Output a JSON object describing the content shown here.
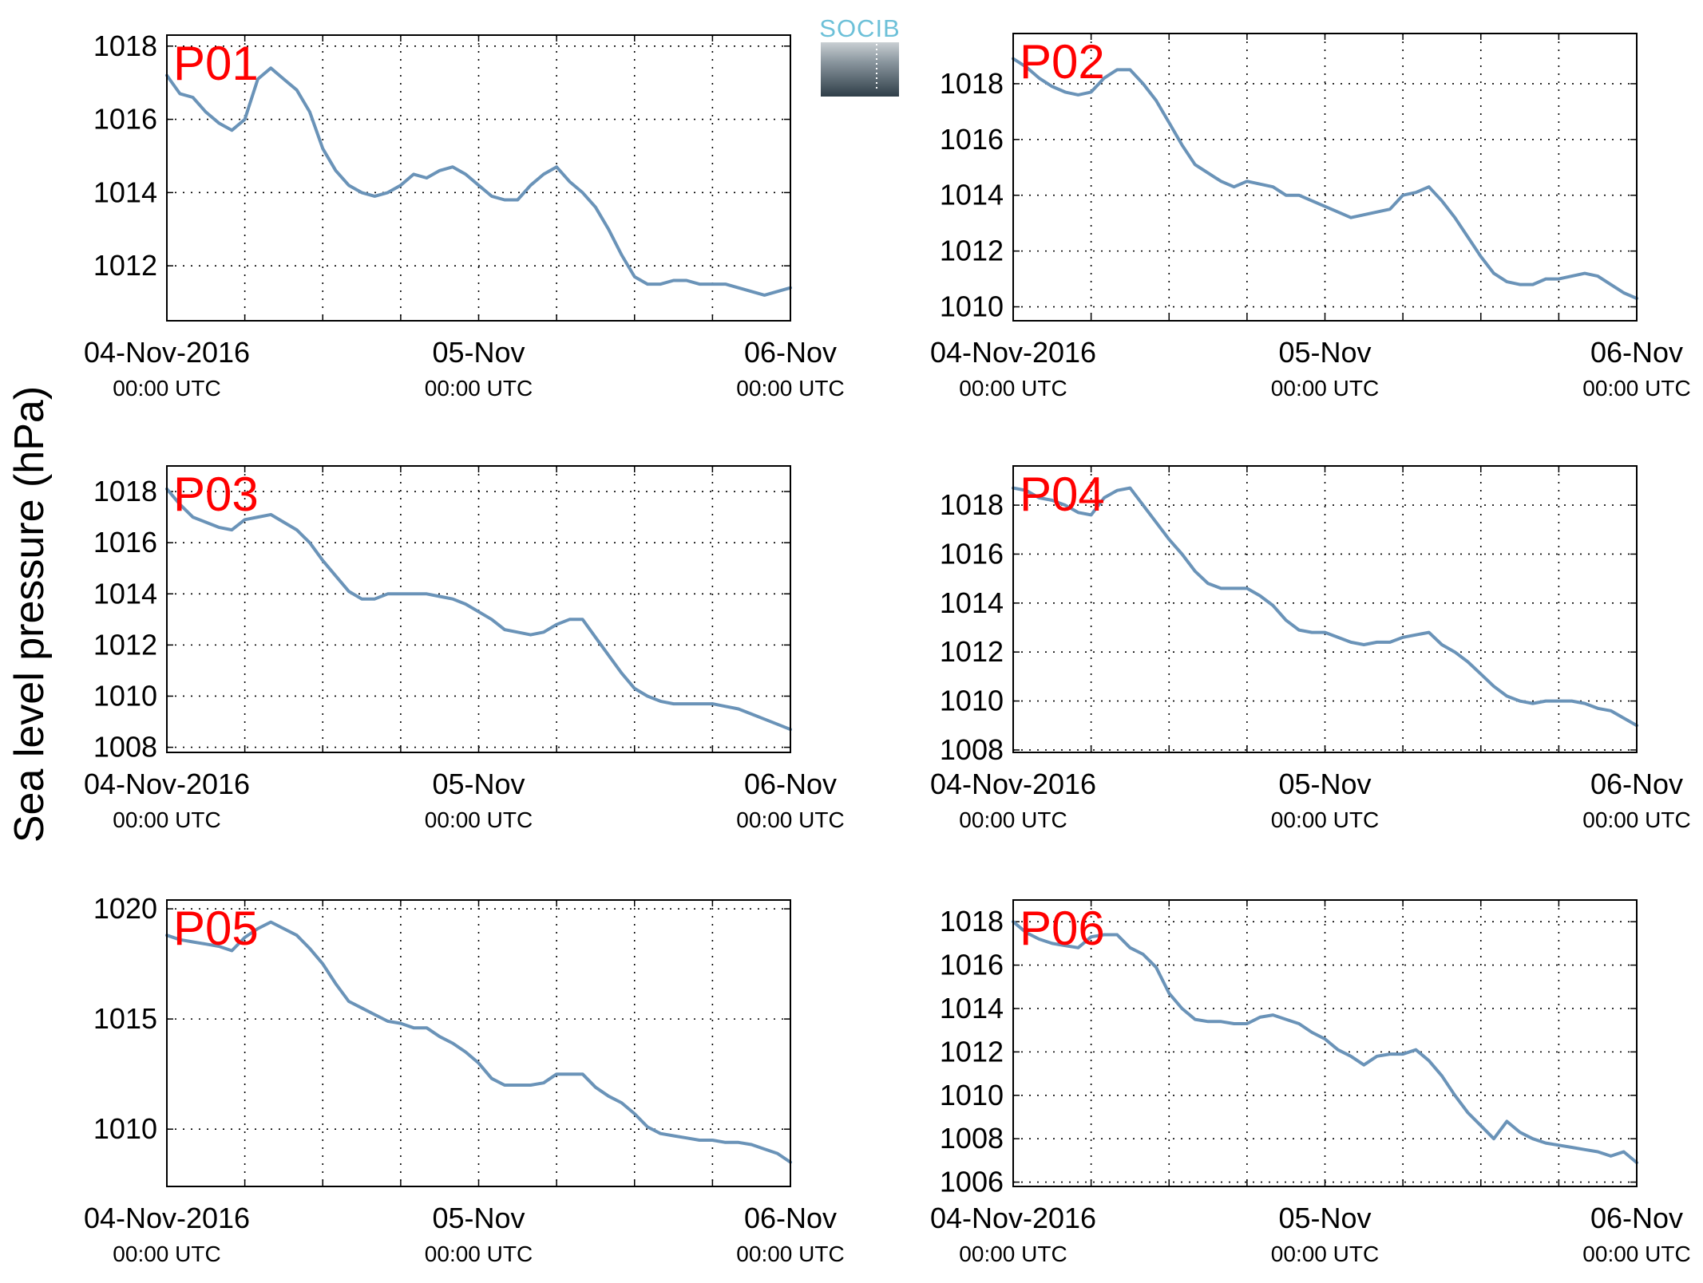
{
  "figure": {
    "ylabel": "Sea level pressure (hPa)",
    "logo_text": "SOCIB",
    "line_color": "#6a93b8",
    "label_color": "#ff0000"
  },
  "chart_data": [
    {
      "type": "line",
      "title": "P01",
      "x_unit": "hours since 04-Nov-2016 00:00 UTC",
      "xlim": [
        0,
        48
      ],
      "x_ticks": [
        0,
        24,
        48
      ],
      "x_tick_labels": [
        "04-Nov-2016",
        "05-Nov",
        "06-Nov"
      ],
      "x_tick_sublabels": [
        "00:00 UTC",
        "00:00 UTC",
        "00:00 UTC"
      ],
      "ylim": [
        1010.5,
        1018.3
      ],
      "y_ticks": [
        1012,
        1014,
        1016,
        1018
      ],
      "x": [
        0,
        1,
        2,
        3,
        4,
        5,
        6,
        7,
        8,
        9,
        10,
        11,
        12,
        13,
        14,
        15,
        16,
        17,
        18,
        19,
        20,
        21,
        22,
        23,
        24,
        25,
        26,
        27,
        28,
        29,
        30,
        31,
        32,
        33,
        34,
        35,
        36,
        37,
        38,
        39,
        40,
        41,
        42,
        43,
        44,
        45,
        46,
        47,
        48
      ],
      "y": [
        1017.2,
        1016.7,
        1016.6,
        1016.2,
        1015.9,
        1015.7,
        1016.0,
        1017.1,
        1017.4,
        1017.1,
        1016.8,
        1016.2,
        1015.2,
        1014.6,
        1014.2,
        1014.0,
        1013.9,
        1014.0,
        1014.2,
        1014.5,
        1014.4,
        1014.6,
        1014.7,
        1014.5,
        1014.2,
        1013.9,
        1013.8,
        1013.8,
        1014.2,
        1014.5,
        1014.7,
        1014.3,
        1014.0,
        1013.6,
        1013.0,
        1012.3,
        1011.7,
        1011.5,
        1011.5,
        1011.6,
        1011.6,
        1011.5,
        1011.5,
        1011.5,
        1011.4,
        1011.3,
        1011.2,
        1011.3,
        1011.4
      ]
    },
    {
      "type": "line",
      "title": "P02",
      "x_unit": "hours since 04-Nov-2016 00:00 UTC",
      "xlim": [
        0,
        48
      ],
      "x_ticks": [
        0,
        24,
        48
      ],
      "x_tick_labels": [
        "04-Nov-2016",
        "05-Nov",
        "06-Nov"
      ],
      "x_tick_sublabels": [
        "00:00 UTC",
        "00:00 UTC",
        "00:00 UTC"
      ],
      "ylim": [
        1009.5,
        1019.8
      ],
      "y_ticks": [
        1010,
        1012,
        1014,
        1016,
        1018
      ],
      "x": [
        0,
        1,
        2,
        3,
        4,
        5,
        6,
        7,
        8,
        9,
        10,
        11,
        12,
        13,
        14,
        15,
        16,
        17,
        18,
        19,
        20,
        21,
        22,
        23,
        24,
        25,
        26,
        27,
        28,
        29,
        30,
        31,
        32,
        33,
        34,
        35,
        36,
        37,
        38,
        39,
        40,
        41,
        42,
        43,
        44,
        45,
        46,
        47,
        48
      ],
      "y": [
        1018.9,
        1018.6,
        1018.2,
        1017.9,
        1017.7,
        1017.6,
        1017.7,
        1018.2,
        1018.5,
        1018.5,
        1018.0,
        1017.4,
        1016.6,
        1015.8,
        1015.1,
        1014.8,
        1014.5,
        1014.3,
        1014.5,
        1014.4,
        1014.3,
        1014.0,
        1014.0,
        1013.8,
        1013.6,
        1013.4,
        1013.2,
        1013.3,
        1013.4,
        1013.5,
        1014.0,
        1014.1,
        1014.3,
        1013.8,
        1013.2,
        1012.5,
        1011.8,
        1011.2,
        1010.9,
        1010.8,
        1010.8,
        1011.0,
        1011.0,
        1011.1,
        1011.2,
        1011.1,
        1010.8,
        1010.5,
        1010.3
      ]
    },
    {
      "type": "line",
      "title": "P03",
      "x_unit": "hours since 04-Nov-2016 00:00 UTC",
      "xlim": [
        0,
        48
      ],
      "x_ticks": [
        0,
        24,
        48
      ],
      "x_tick_labels": [
        "04-Nov-2016",
        "05-Nov",
        "06-Nov"
      ],
      "x_tick_sublabels": [
        "00:00 UTC",
        "00:00 UTC",
        "00:00 UTC"
      ],
      "ylim": [
        1007.8,
        1019.0
      ],
      "y_ticks": [
        1008,
        1010,
        1012,
        1014,
        1016,
        1018
      ],
      "x": [
        0,
        1,
        2,
        3,
        4,
        5,
        6,
        7,
        8,
        9,
        10,
        11,
        12,
        13,
        14,
        15,
        16,
        17,
        18,
        19,
        20,
        21,
        22,
        23,
        24,
        25,
        26,
        27,
        28,
        29,
        30,
        31,
        32,
        33,
        34,
        35,
        36,
        37,
        38,
        39,
        40,
        41,
        42,
        43,
        44,
        45,
        46,
        47,
        48
      ],
      "y": [
        1018.1,
        1017.5,
        1017.0,
        1016.8,
        1016.6,
        1016.5,
        1016.9,
        1017.0,
        1017.1,
        1016.8,
        1016.5,
        1016.0,
        1015.3,
        1014.7,
        1014.1,
        1013.8,
        1013.8,
        1014.0,
        1014.0,
        1014.0,
        1014.0,
        1013.9,
        1013.8,
        1013.6,
        1013.3,
        1013.0,
        1012.6,
        1012.5,
        1012.4,
        1012.5,
        1012.8,
        1013.0,
        1013.0,
        1012.3,
        1011.6,
        1010.9,
        1010.3,
        1010.0,
        1009.8,
        1009.7,
        1009.7,
        1009.7,
        1009.7,
        1009.6,
        1009.5,
        1009.3,
        1009.1,
        1008.9,
        1008.7
      ]
    },
    {
      "type": "line",
      "title": "P04",
      "x_unit": "hours since 04-Nov-2016 00:00 UTC",
      "xlim": [
        0,
        48
      ],
      "x_ticks": [
        0,
        24,
        48
      ],
      "x_tick_labels": [
        "04-Nov-2016",
        "05-Nov",
        "06-Nov"
      ],
      "x_tick_sublabels": [
        "00:00 UTC",
        "00:00 UTC",
        "00:00 UTC"
      ],
      "ylim": [
        1007.9,
        1019.6
      ],
      "y_ticks": [
        1008,
        1010,
        1012,
        1014,
        1016,
        1018
      ],
      "x": [
        0,
        1,
        2,
        3,
        4,
        5,
        6,
        7,
        8,
        9,
        10,
        11,
        12,
        13,
        14,
        15,
        16,
        17,
        18,
        19,
        20,
        21,
        22,
        23,
        24,
        25,
        26,
        27,
        28,
        29,
        30,
        31,
        32,
        33,
        34,
        35,
        36,
        37,
        38,
        39,
        40,
        41,
        42,
        43,
        44,
        45,
        46,
        47,
        48
      ],
      "y": [
        1018.7,
        1018.6,
        1018.3,
        1018.2,
        1018.0,
        1017.7,
        1017.6,
        1018.3,
        1018.6,
        1018.7,
        1018.0,
        1017.3,
        1016.6,
        1016.0,
        1015.3,
        1014.8,
        1014.6,
        1014.6,
        1014.6,
        1014.3,
        1013.9,
        1013.3,
        1012.9,
        1012.8,
        1012.8,
        1012.6,
        1012.4,
        1012.3,
        1012.4,
        1012.4,
        1012.6,
        1012.7,
        1012.8,
        1012.3,
        1012.0,
        1011.6,
        1011.1,
        1010.6,
        1010.2,
        1010.0,
        1009.9,
        1010.0,
        1010.0,
        1010.0,
        1009.9,
        1009.7,
        1009.6,
        1009.3,
        1009.0
      ]
    },
    {
      "type": "line",
      "title": "P05",
      "x_unit": "hours since 04-Nov-2016 00:00 UTC",
      "xlim": [
        0,
        48
      ],
      "x_ticks": [
        0,
        24,
        48
      ],
      "x_tick_labels": [
        "04-Nov-2016",
        "05-Nov",
        "06-Nov"
      ],
      "x_tick_sublabels": [
        "00:00 UTC",
        "00:00 UTC",
        "00:00 UTC"
      ],
      "ylim": [
        1007.4,
        1020.4
      ],
      "y_ticks": [
        1010,
        1015,
        1020
      ],
      "x": [
        0,
        1,
        2,
        3,
        4,
        5,
        6,
        7,
        8,
        9,
        10,
        11,
        12,
        13,
        14,
        15,
        16,
        17,
        18,
        19,
        20,
        21,
        22,
        23,
        24,
        25,
        26,
        27,
        28,
        29,
        30,
        31,
        32,
        33,
        34,
        35,
        36,
        37,
        38,
        39,
        40,
        41,
        42,
        43,
        44,
        45,
        46,
        47,
        48
      ],
      "y": [
        1018.8,
        1018.6,
        1018.5,
        1018.4,
        1018.3,
        1018.1,
        1018.7,
        1019.1,
        1019.4,
        1019.1,
        1018.8,
        1018.2,
        1017.5,
        1016.6,
        1015.8,
        1015.5,
        1015.2,
        1014.9,
        1014.8,
        1014.6,
        1014.6,
        1014.2,
        1013.9,
        1013.5,
        1013.0,
        1012.3,
        1012.0,
        1012.0,
        1012.0,
        1012.1,
        1012.5,
        1012.5,
        1012.5,
        1011.9,
        1011.5,
        1011.2,
        1010.7,
        1010.1,
        1009.8,
        1009.7,
        1009.6,
        1009.5,
        1009.5,
        1009.4,
        1009.4,
        1009.3,
        1009.1,
        1008.9,
        1008.5
      ]
    },
    {
      "type": "line",
      "title": "P06",
      "x_unit": "hours since 04-Nov-2016 00:00 UTC",
      "xlim": [
        0,
        48
      ],
      "x_ticks": [
        0,
        24,
        48
      ],
      "x_tick_labels": [
        "04-Nov-2016",
        "05-Nov",
        "06-Nov"
      ],
      "x_tick_sublabels": [
        "00:00 UTC",
        "00:00 UTC",
        "00:00 UTC"
      ],
      "ylim": [
        1005.8,
        1019.0
      ],
      "y_ticks": [
        1006,
        1008,
        1010,
        1012,
        1014,
        1016,
        1018
      ],
      "x": [
        0,
        1,
        2,
        3,
        4,
        5,
        6,
        7,
        8,
        9,
        10,
        11,
        12,
        13,
        14,
        15,
        16,
        17,
        18,
        19,
        20,
        21,
        22,
        23,
        24,
        25,
        26,
        27,
        28,
        29,
        30,
        31,
        32,
        33,
        34,
        35,
        36,
        37,
        38,
        39,
        40,
        41,
        42,
        43,
        44,
        45,
        46,
        47,
        48
      ],
      "y": [
        1018.0,
        1017.5,
        1017.2,
        1017.0,
        1016.9,
        1016.8,
        1017.3,
        1017.4,
        1017.4,
        1016.8,
        1016.5,
        1015.9,
        1014.7,
        1014.0,
        1013.5,
        1013.4,
        1013.4,
        1013.3,
        1013.3,
        1013.6,
        1013.7,
        1013.5,
        1013.3,
        1012.9,
        1012.6,
        1012.1,
        1011.8,
        1011.4,
        1011.8,
        1011.9,
        1011.9,
        1012.1,
        1011.6,
        1010.9,
        1010.0,
        1009.2,
        1008.6,
        1008.0,
        1008.8,
        1008.3,
        1008.0,
        1007.8,
        1007.7,
        1007.6,
        1007.5,
        1007.4,
        1007.2,
        1007.4,
        1006.9
      ]
    }
  ]
}
